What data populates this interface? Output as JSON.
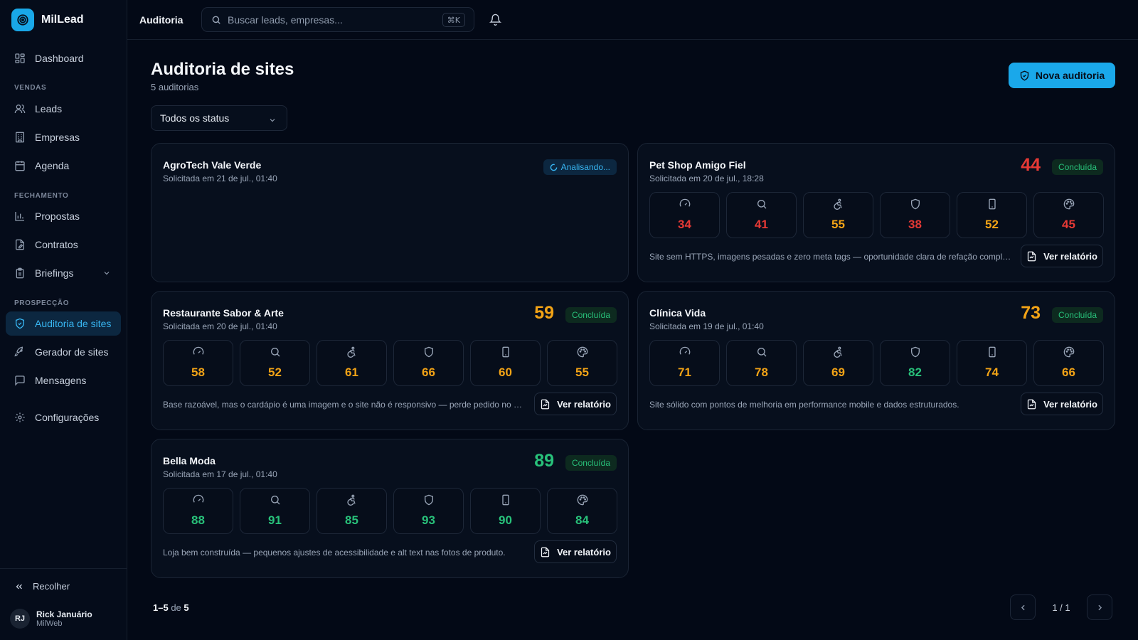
{
  "app": {
    "name": "MilLead"
  },
  "sidebar": {
    "items": [
      {
        "label": "Dashboard"
      },
      {
        "label": "Leads"
      },
      {
        "label": "Empresas"
      },
      {
        "label": "Agenda"
      },
      {
        "label": "Propostas"
      },
      {
        "label": "Contratos"
      },
      {
        "label": "Briefings"
      },
      {
        "label": "Auditoria de sites"
      },
      {
        "label": "Gerador de sites"
      },
      {
        "label": "Mensagens"
      },
      {
        "label": "Configurações"
      }
    ],
    "sections": {
      "vendas": "VENDAS",
      "fechamento": "FECHAMENTO",
      "prospeccao": "PROSPECÇÃO"
    },
    "collapse_label": "Recolher",
    "user": {
      "initials": "RJ",
      "name": "Rick Januário",
      "org": "MilWeb"
    }
  },
  "topbar": {
    "breadcrumb": "Auditoria",
    "search_placeholder": "Buscar leads, empresas...",
    "shortcut": "⌘K"
  },
  "page": {
    "title": "Auditoria de sites",
    "count": "5 auditorias",
    "new_button": "Nova auditoria",
    "filter": "Todos os status"
  },
  "metric_icons": [
    "gauge-icon",
    "search-icon",
    "accessibility-icon",
    "shield-icon",
    "smartphone-icon",
    "palette-icon"
  ],
  "audits": [
    {
      "name": "AgroTech Vale Verde",
      "date": "Solicitada em 21 de jul., 01:40",
      "status": "Analisando..."
    },
    {
      "name": "Pet Shop Amigo Fiel",
      "date": "Solicitada em 20 de jul., 18:28",
      "score": "44",
      "status": "Concluída",
      "metrics": [
        "34",
        "41",
        "55",
        "38",
        "52",
        "45"
      ],
      "summary": "Site sem HTTPS, imagens pesadas e zero meta tags — oportunidade clara de refação completa.",
      "report_label": "Ver relatório"
    },
    {
      "name": "Restaurante Sabor & Arte",
      "date": "Solicitada em 20 de jul., 01:40",
      "score": "59",
      "status": "Concluída",
      "metrics": [
        "58",
        "52",
        "61",
        "66",
        "60",
        "55"
      ],
      "summary": "Base razoável, mas o cardápio é uma imagem e o site não é responsivo — perde pedido no cel...",
      "report_label": "Ver relatório"
    },
    {
      "name": "Clínica Vida",
      "date": "Solicitada em 19 de jul., 01:40",
      "score": "73",
      "status": "Concluída",
      "metrics": [
        "71",
        "78",
        "69",
        "82",
        "74",
        "66"
      ],
      "summary": "Site sólido com pontos de melhoria em performance mobile e dados estruturados.",
      "report_label": "Ver relatório"
    },
    {
      "name": "Bella Moda",
      "date": "Solicitada em 17 de jul., 01:40",
      "score": "89",
      "status": "Concluída",
      "metrics": [
        "88",
        "91",
        "85",
        "93",
        "90",
        "84"
      ],
      "summary": "Loja bem construída — pequenos ajustes de acessibilidade e alt text nas fotos de produto.",
      "report_label": "Ver relatório"
    }
  ],
  "pagination": {
    "range": "1–5",
    "of_label": "de",
    "total": "5",
    "page": "1 / 1"
  },
  "colors": {
    "accent": "#1aa8ea",
    "bad": "#e53935",
    "medium": "#f2a316",
    "good": "#28c17a"
  }
}
